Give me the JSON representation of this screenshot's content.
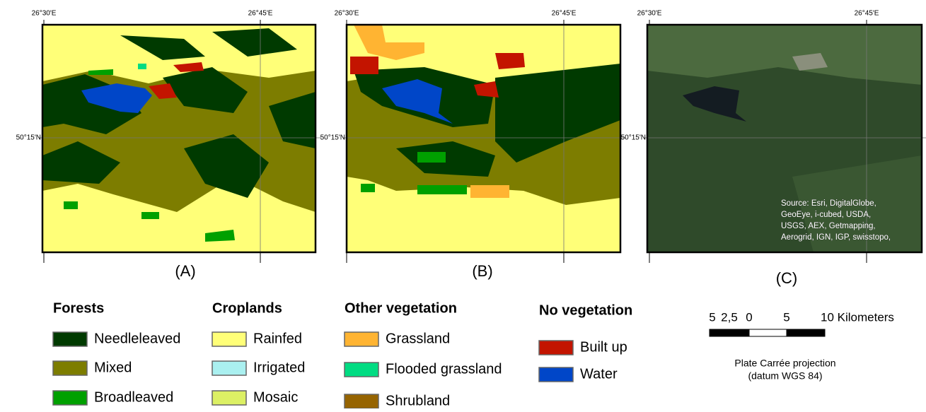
{
  "panels": [
    {
      "label": "(A)",
      "lon_labels": [
        "26°30'E",
        "26°45'E"
      ],
      "lat_label": "50°15'N"
    },
    {
      "label": "(B)",
      "lon_labels": [
        "26°30'E",
        "26°45'E"
      ],
      "lat_label": "50°15'N"
    },
    {
      "label": "(C)",
      "lon_labels": [
        "26°30'E",
        "26°45'E"
      ],
      "lat_label": "50°15'N",
      "source": [
        "Source: Esri, DigitalGlobe,",
        "GeoEye, i-cubed, USDA,",
        "USGS, AEX, Getmapping,",
        "Aerogrid, IGN, IGP, swisstopo,"
      ]
    }
  ],
  "legend": [
    {
      "title": "Forests",
      "items": [
        {
          "label": "Needleleaved",
          "color": "#003a00"
        },
        {
          "label": "Mixed",
          "color": "#7d7d00"
        },
        {
          "label": "Broadleaved",
          "color": "#00a000"
        }
      ]
    },
    {
      "title": "Croplands",
      "items": [
        {
          "label": "Rainfed",
          "color": "#ffff78"
        },
        {
          "label": "Irrigated",
          "color": "#aaf0f0"
        },
        {
          "label": "Mosaic",
          "color": "#dcf064"
        }
      ]
    },
    {
      "title": "Other vegetation",
      "items": [
        {
          "label": "Grassland",
          "color": "#ffb432"
        },
        {
          "label": "Flooded grassland",
          "color": "#00dc82"
        },
        {
          "label": "Shrubland",
          "color": "#966400"
        }
      ]
    },
    {
      "title": "No vegetation",
      "items": [
        {
          "label": "Built up",
          "color": "#c31400"
        },
        {
          "label": "Water",
          "color": "#0046c8"
        }
      ]
    }
  ],
  "scale_bar": {
    "labels": [
      "5",
      "2,5",
      "0",
      "5",
      "10 Kilometers"
    ]
  },
  "projection": [
    "Plate Carrée projection",
    "(datum WGS 84)"
  ]
}
